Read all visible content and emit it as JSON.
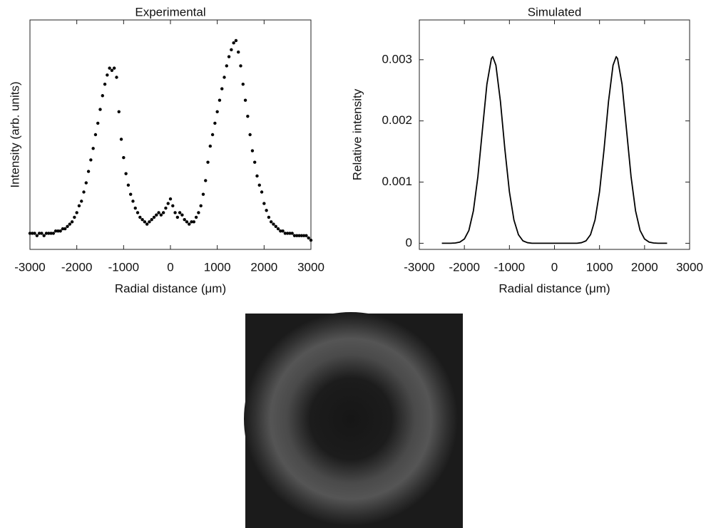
{
  "chart_data": [
    {
      "type": "scatter",
      "title": "Experimental",
      "x_label": "Radial distance (μm)",
      "y_label": "Intensity (arb. units)",
      "color": "#000000",
      "xlim": [
        -3000,
        3000
      ],
      "xticks": [
        -3000,
        -2000,
        -1000,
        0,
        1000,
        2000,
        3000
      ],
      "ylim": [
        0,
        1
      ],
      "x": [
        -3000,
        -2950,
        -2900,
        -2850,
        -2800,
        -2750,
        -2700,
        -2650,
        -2600,
        -2550,
        -2500,
        -2450,
        -2400,
        -2350,
        -2300,
        -2250,
        -2200,
        -2150,
        -2100,
        -2050,
        -2000,
        -1950,
        -1900,
        -1850,
        -1800,
        -1750,
        -1700,
        -1650,
        -1600,
        -1550,
        -1500,
        -1450,
        -1400,
        -1350,
        -1300,
        -1250,
        -1200,
        -1150,
        -1100,
        -1050,
        -1000,
        -950,
        -900,
        -850,
        -800,
        -750,
        -700,
        -650,
        -600,
        -550,
        -500,
        -450,
        -400,
        -350,
        -300,
        -250,
        -200,
        -150,
        -100,
        -50,
        0,
        50,
        100,
        150,
        200,
        250,
        300,
        350,
        400,
        450,
        500,
        550,
        600,
        650,
        700,
        750,
        800,
        850,
        900,
        950,
        1000,
        1050,
        1100,
        1150,
        1200,
        1250,
        1300,
        1350,
        1400,
        1450,
        1500,
        1550,
        1600,
        1650,
        1700,
        1750,
        1800,
        1850,
        1900,
        1950,
        2000,
        2050,
        2100,
        2150,
        2200,
        2250,
        2300,
        2350,
        2400,
        2450,
        2500,
        2550,
        2600,
        2650,
        2700,
        2750,
        2800,
        2850,
        2900,
        2950,
        3000
      ],
      "values": [
        0.07,
        0.07,
        0.07,
        0.06,
        0.07,
        0.07,
        0.06,
        0.07,
        0.07,
        0.07,
        0.07,
        0.08,
        0.08,
        0.08,
        0.09,
        0.09,
        0.1,
        0.11,
        0.12,
        0.14,
        0.16,
        0.19,
        0.21,
        0.25,
        0.29,
        0.34,
        0.39,
        0.44,
        0.5,
        0.55,
        0.61,
        0.67,
        0.72,
        0.76,
        0.79,
        0.78,
        0.79,
        0.75,
        0.6,
        0.48,
        0.4,
        0.33,
        0.28,
        0.24,
        0.21,
        0.18,
        0.16,
        0.14,
        0.13,
        0.12,
        0.11,
        0.12,
        0.13,
        0.14,
        0.15,
        0.16,
        0.15,
        0.16,
        0.18,
        0.2,
        0.22,
        0.19,
        0.16,
        0.14,
        0.16,
        0.15,
        0.13,
        0.12,
        0.11,
        0.12,
        0.12,
        0.14,
        0.16,
        0.19,
        0.24,
        0.3,
        0.38,
        0.45,
        0.5,
        0.55,
        0.6,
        0.65,
        0.7,
        0.75,
        0.8,
        0.84,
        0.87,
        0.9,
        0.91,
        0.86,
        0.8,
        0.72,
        0.65,
        0.58,
        0.5,
        0.43,
        0.38,
        0.32,
        0.28,
        0.25,
        0.2,
        0.17,
        0.14,
        0.12,
        0.11,
        0.1,
        0.09,
        0.08,
        0.08,
        0.07,
        0.07,
        0.07,
        0.07,
        0.06,
        0.06,
        0.06,
        0.06,
        0.06,
        0.06,
        0.05,
        0.04
      ]
    },
    {
      "type": "line",
      "title": "Simulated",
      "x_label": "Radial distance (μm)",
      "y_label": "Relative intensity",
      "color": "#000000",
      "xlim": [
        -3000,
        3000
      ],
      "xticks": [
        -3000,
        -2000,
        -1000,
        0,
        1000,
        2000,
        3000
      ],
      "ylim": [
        -0.0001,
        0.00365
      ],
      "yticks": [
        0,
        0.001,
        0.002,
        0.003
      ],
      "x": [
        -2500,
        -2400,
        -2300,
        -2200,
        -2100,
        -2000,
        -1900,
        -1800,
        -1700,
        -1600,
        -1500,
        -1400,
        -1370,
        -1300,
        -1200,
        -1100,
        -1000,
        -900,
        -800,
        -700,
        -600,
        -500,
        -400,
        -300,
        -200,
        -100,
        0,
        100,
        200,
        300,
        400,
        500,
        600,
        700,
        800,
        900,
        1000,
        1100,
        1200,
        1300,
        1370,
        1400,
        1500,
        1600,
        1700,
        1800,
        1900,
        2000,
        2100,
        2200,
        2300,
        2400,
        2500
      ],
      "values": [
        0,
        0,
        0,
        5e-06,
        2e-05,
        7e-05,
        0.00021,
        0.00053,
        0.00109,
        0.00185,
        0.0026,
        0.00302,
        0.00305,
        0.00291,
        0.00232,
        0.00153,
        0.00084,
        0.00038,
        0.00014,
        4e-05,
        1e-05,
        0,
        0,
        0,
        0,
        0,
        0,
        0,
        0,
        0,
        0,
        0,
        1e-05,
        4e-05,
        0.00014,
        0.00038,
        0.00084,
        0.00153,
        0.00232,
        0.00291,
        0.00305,
        0.00302,
        0.0026,
        0.00185,
        0.00109,
        0.00053,
        0.00021,
        7e-05,
        2e-05,
        5e-06,
        0,
        0,
        0
      ]
    }
  ]
}
